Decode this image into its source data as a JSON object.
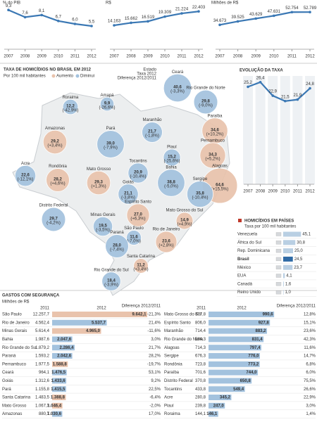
{
  "chart_data": [
    {
      "type": "line",
      "subtitle": "% do PIB",
      "x": [
        2007,
        2008,
        2009,
        2010,
        2011,
        2012
      ],
      "xlim": [
        2007,
        2012
      ],
      "xticks": [
        2007,
        2008,
        2009,
        2010,
        2011,
        2012
      ],
      "ylim": [
        0,
        10
      ],
      "color": "#3b78b4",
      "values": [
        9.3,
        7.6,
        8.1,
        6.7,
        6.0,
        5.5
      ],
      "value_labels": [
        "9,3",
        "7,6",
        "8,1",
        "6,7",
        "6,0",
        "5,5"
      ]
    },
    {
      "type": "line",
      "subtitle": "R$",
      "x": [
        2007,
        2008,
        2009,
        2010,
        2011,
        2012
      ],
      "xlim": [
        2007,
        2012
      ],
      "xticks": [
        2007,
        2008,
        2009,
        2010,
        2011,
        2012
      ],
      "ylim": [
        0,
        25000
      ],
      "color": "#3b78b4",
      "values": [
        14163,
        15662,
        16519,
        19309,
        21224,
        22403
      ],
      "value_labels": [
        "14.163",
        "15.662",
        "16.519",
        "19.309",
        "21.224",
        "22.403"
      ]
    },
    {
      "type": "line",
      "subtitle": "Milhões de R$",
      "x": [
        2007,
        2008,
        2009,
        2010,
        2011,
        2012
      ],
      "xlim": [
        2007,
        2012
      ],
      "xticks": [
        2007,
        2008,
        2009,
        2010,
        2011,
        2012
      ],
      "ylim": [
        0,
        60000
      ],
      "color": "#3b78b4",
      "values": [
        34673,
        39525,
        43629,
        47631,
        52754,
        52789
      ],
      "value_labels": [
        "34.673",
        "39.525",
        "43.629",
        "47.631",
        "52.754",
        "52.789"
      ]
    },
    {
      "type": "bubble-map",
      "title": "TAXA DE HOMICÍDIOS NO BRASIL EM 2012",
      "subtitle": "Por 100 mil habitantes",
      "legend": [
        "Aumento",
        "Diminui"
      ],
      "key": [
        "Estado",
        "Taxa 2012",
        "Diferença 2012/2011"
      ],
      "colors": {
        "increase": "#e9c3ac",
        "decrease": "#a3c2de"
      },
      "states": [
        {
          "name": "Roraima",
          "value": 12.2,
          "value_label": "12,2",
          "change": -42.9,
          "change_label": "(-42,9%)"
        },
        {
          "name": "Amapá",
          "value": 9.9,
          "value_label": "9,9",
          "change": -26.6,
          "change_label": "(-26,6%)"
        },
        {
          "name": "Amazonas",
          "value": 29.2,
          "value_label": "29,2",
          "change": 3.4,
          "change_label": "(+3,4%)"
        },
        {
          "name": "Pará",
          "value": 39.0,
          "value_label": "39,0",
          "change": -7.9,
          "change_label": "(-7,9%)"
        },
        {
          "name": "Maranhão",
          "value": 21.7,
          "value_label": "21,7",
          "change": -1.8,
          "change_label": "(-1,8%)"
        },
        {
          "name": "Ceará",
          "value": 40.6,
          "value_label": "40,6",
          "change": -3.3,
          "change_label": "(-3,3%)"
        },
        {
          "name": "Rio Grande do Norte",
          "value": 29.8,
          "value_label": "29,8",
          "change": -9.0,
          "change_label": "(-9,0%)"
        },
        {
          "name": "Paraíba",
          "value": 34.6,
          "value_label": "34,6",
          "change": 10.2,
          "change_label": "(+10,2%)"
        },
        {
          "name": "Pernambuco",
          "value": 34.3,
          "value_label": "34,3",
          "change": 5.2,
          "change_label": "(+5,2%)"
        },
        {
          "name": "Alagoas",
          "value": 64.6,
          "value_label": "64,6",
          "change": 15.5,
          "change_label": "(+15,5%)"
        },
        {
          "name": "Sergipe",
          "value": 35.8,
          "value_label": "35,8",
          "change": -10.4,
          "change_label": "(-10,4%)"
        },
        {
          "name": "Piauí",
          "value": 15.2,
          "value_label": "15,2",
          "change": -25.6,
          "change_label": "(-25,6%)"
        },
        {
          "name": "Bahia",
          "value": 38.8,
          "value_label": "38,8",
          "change": -5.0,
          "change_label": "(-5,0%)"
        },
        {
          "name": "Tocantins",
          "value": 20.9,
          "value_label": "20,9",
          "change": -10.4,
          "change_label": "(-10,4%)"
        },
        {
          "name": "Acre",
          "value": 22.6,
          "value_label": "22,6",
          "change": -12.1,
          "change_label": "(-12,1%)"
        },
        {
          "name": "Rondônia",
          "value": 28.2,
          "value_label": "28,2",
          "change": 4.6,
          "change_label": "(+4,6%)"
        },
        {
          "name": "Mato Grosso",
          "value": 29.3,
          "value_label": "29,3",
          "change": 1.3,
          "change_label": "(+1,3%)"
        },
        {
          "name": "Goiás",
          "value": 21.1,
          "value_label": "21,1",
          "change": -3.8,
          "change_label": "(-3,8%)"
        },
        {
          "name": "Distrito Federal",
          "value": 29.7,
          "value_label": "29,7",
          "change": -4.2,
          "change_label": "(-4,2%)"
        },
        {
          "name": "Minas Gerais",
          "value": 19.5,
          "value_label": "19,5",
          "change": -3.5,
          "change_label": "(-3,5%)"
        },
        {
          "name": "Espírito Santo",
          "value": 27.0,
          "value_label": "27,0",
          "change": 6.3,
          "change_label": "(+6,3%)"
        },
        {
          "name": "Mato Grosso do Sul",
          "value": 14.9,
          "value_label": "14,9",
          "change": 4.9,
          "change_label": "(+4,9%)"
        },
        {
          "name": "São Paulo",
          "value": 11.6,
          "value_label": "11,6",
          "change": -7.0,
          "change_label": "(-7,0%)"
        },
        {
          "name": "Rio de Janeiro",
          "value": 23.6,
          "value_label": "23,6",
          "change": 2.8,
          "change_label": "(+2,8%)"
        },
        {
          "name": "Paraná",
          "value": 28.0,
          "value_label": "28,0",
          "change": -7.4,
          "change_label": "(-7,4%)"
        },
        {
          "name": "Santa Catarina",
          "value": 11.2,
          "value_label": "11,2",
          "change": 3.4,
          "change_label": "(+3,4%)"
        },
        {
          "name": "Rio Grande do Sul",
          "value": 18.4,
          "value_label": "18,4",
          "change": -3.9,
          "change_label": "(-3,9%)"
        }
      ]
    },
    {
      "type": "line",
      "title": "EVOLUÇÃO DA TAXA",
      "x": [
        2007,
        2008,
        2009,
        2010,
        2011,
        2012
      ],
      "xlim": [
        2007,
        2012
      ],
      "xticks": [
        2007,
        2008,
        2009,
        2010,
        2011,
        2012
      ],
      "ylim": [
        0,
        30
      ],
      "color": "#3b78b4",
      "values": [
        25.2,
        26.4,
        22.9,
        21.5,
        21.9,
        24.8
      ],
      "value_labels": [
        "25,2",
        "26,4",
        "22,9",
        "21,5",
        "21,9",
        "24,8"
      ]
    },
    {
      "type": "hbar",
      "title": "HOMICÍDIOS EM PAÍSES",
      "subtitle": "Taxa por 100 mil habitantes",
      "xlim": [
        0,
        50
      ],
      "categories": [
        "Venezuela",
        "África do Sul",
        "Rep. Dominicana",
        "Brasil",
        "México",
        "EUA",
        "Canadá",
        "Reino Unido"
      ],
      "values": [
        45.1,
        30.8,
        25.0,
        24.5,
        23.7,
        4.1,
        1.6,
        1.0
      ],
      "value_labels": [
        "45,1",
        "30,8",
        "25,0",
        "24,5",
        "23,7",
        "4,1",
        "1,6",
        "1,0"
      ],
      "colors": [
        "#b9cfe3",
        "#b9cfe3",
        "#b9cfe3",
        "#2f6aa5",
        "#b9cfe3",
        "#b9cfe3",
        "#b9cfe3",
        "#b9cfe3"
      ]
    },
    {
      "type": "table-bar",
      "title": "GASTOS COM SEGURANÇA",
      "subtitle": "Milhões de R$",
      "xlim": [
        0,
        10000
      ],
      "colors": {
        "increase": "#a3c2de",
        "decrease": "#e9c3ac"
      },
      "categories": [
        "São Paulo",
        "Rio de Janeiro",
        "Minas Gerais",
        "Bahia",
        "Rio Grande do Sul",
        "Paraná",
        "Pernambuco",
        "Ceará",
        "Goiás",
        "Pará",
        "Santa Catarina",
        "Mato Grosso",
        "Amazonas"
      ],
      "series": [
        {
          "name": "2011",
          "values": [
            12257.7,
            4562.4,
            5614.4,
            1987.6,
            1879.2,
            1593.2,
            1977.5,
            964.1,
            1312.6,
            1155.8,
            1483.5,
            1067.3,
            880.7
          ],
          "value_labels": [
            "12.257,7",
            "4.562,4",
            "5.614,4",
            "1.987,6",
            "1.879,2",
            "1.593,2",
            "1.977,5",
            "964,1",
            "1.312,6",
            "1.155,8",
            "1.483,5",
            "1.067,3",
            "880,7"
          ]
        },
        {
          "name": "2012",
          "values": [
            9642.1,
            5537.7,
            4965.0,
            2047.6,
            2286.4,
            2042.6,
            1588.8,
            1476.5,
            1433.6,
            1415.5,
            1388.8,
            1046.4,
            1030.6
          ],
          "value_labels": [
            "9.642,1",
            "5.537,7",
            "4.965,0",
            "2.047,6",
            "2.286,4",
            "2.042,6",
            "1.588,8",
            "1.476,5",
            "1.433,6",
            "1.415,5",
            "1.388,8",
            "1.046,4",
            "1.030,6"
          ]
        },
        {
          "name": "Diferença 2012/2011",
          "labels": [
            "-21,3%",
            "21,4%",
            "-11,6%",
            "3,0%",
            "21,7%",
            "28,2%",
            "-19,7%",
            "53,1%",
            "9,2%",
            "22,5%",
            "-6,4%",
            "-2,0%",
            "17,0%"
          ]
        }
      ]
    },
    {
      "type": "table-bar",
      "xlim": [
        0,
        1000
      ],
      "colors": {
        "increase": "#a3c2de",
        "decrease": "#e9c3ac"
      },
      "categories": [
        "Mato Grosso do Sul",
        "Espírito Santo",
        "Maranhão",
        "Rio Grande do Norte",
        "Alagoas",
        "Sergipe",
        "Rondônia",
        "Paraíba",
        "Distrito Federal",
        "Tocantins",
        "Acre",
        "Piauí",
        "Roraima"
      ],
      "series": [
        {
          "name": "2011",
          "values": [
            877.8,
            806.0,
            714.4,
            584.3,
            714.3,
            676.3,
            723.8,
            701.6,
            370.8,
            433.8,
            280.8,
            239.8,
            144.1
          ],
          "value_labels": [
            "877,8",
            "806,0",
            "714,4",
            "584,3",
            "714,3",
            "676,3",
            "723,8",
            "701,6",
            "370,8",
            "433,8",
            "280,8",
            "239,8",
            "144,1"
          ]
        },
        {
          "name": "2012",
          "values": [
            990.6,
            927.8,
            883.2,
            831.4,
            797.4,
            776.0,
            773.2,
            744.0,
            650.8,
            549.4,
            345.2,
            247.0,
            146.1
          ],
          "value_labels": [
            "990,6",
            "927,8",
            "883,2",
            "831,4",
            "797,4",
            "776,0",
            "773,2",
            "744,0",
            "650,8",
            "549,4",
            "345,2",
            "247,0",
            "146,1"
          ]
        },
        {
          "name": "Diferença 2012/2011",
          "labels": [
            "12,8%",
            "15,1%",
            "23,6%",
            "42,3%",
            "11,6%",
            "14,7%",
            "6,8%",
            "6,0%",
            "75,5%",
            "26,6%",
            "22,9%",
            "3,0%",
            "1,4%"
          ]
        }
      ]
    }
  ]
}
